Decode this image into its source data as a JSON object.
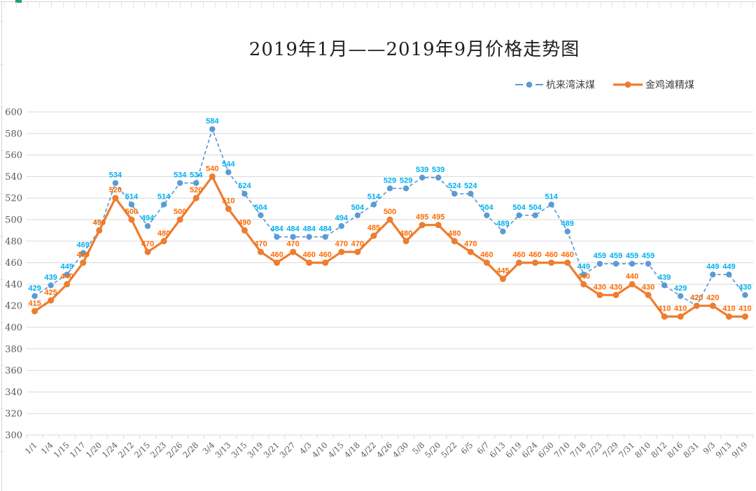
{
  "sheet": {
    "cell_marker_color": "#21A366",
    "gridline_color": "#d6d6d6"
  },
  "chart_data": {
    "type": "line",
    "title": "2019年1月——2019年9月价格走势图",
    "categories": [
      "1/1",
      "1/4",
      "1/15",
      "1/17",
      "1/20",
      "1/24",
      "2/12",
      "2/15",
      "2/23",
      "2/26",
      "2/28",
      "3/4",
      "3/13",
      "3/15",
      "3/19",
      "3/21",
      "3/27",
      "4/3",
      "4/10",
      "4/15",
      "4/18",
      "4/22",
      "4/26",
      "4/30",
      "5/8",
      "5/20",
      "5/22",
      "6/5",
      "6/7",
      "6/13",
      "6/19",
      "6/24",
      "6/30",
      "7/10",
      "7/18",
      "7/23",
      "7/29",
      "7/31",
      "8/10",
      "8/12",
      "8/16",
      "8/31",
      "9/3",
      "9/13",
      "9/19"
    ],
    "series": [
      {
        "name": "杭来湾沫煤",
        "line_style": "dashed",
        "color": "#5B9BD5",
        "label_color": "#00B0F0",
        "values": [
          429,
          439,
          449,
          469,
          490,
          534,
          514,
          494,
          514,
          534,
          534,
          584,
          544,
          524,
          504,
          484,
          484,
          484,
          484,
          494,
          504,
          514,
          529,
          529,
          539,
          539,
          524,
          524,
          504,
          489,
          504,
          504,
          514,
          489,
          449,
          459,
          459,
          459,
          459,
          439,
          429,
          420,
          449,
          449,
          430
        ]
      },
      {
        "name": "金鸡滩精煤",
        "line_style": "solid",
        "color": "#ED7D31",
        "label_color": "#FF6A00",
        "values": [
          415,
          425,
          440,
          460,
          490,
          520,
          500,
          470,
          480,
          500,
          520,
          540,
          510,
          490,
          470,
          460,
          470,
          460,
          460,
          470,
          470,
          485,
          500,
          480,
          495,
          495,
          480,
          470,
          460,
          445,
          460,
          460,
          460,
          460,
          440,
          430,
          430,
          440,
          430,
          410,
          410,
          420,
          420,
          410,
          410
        ]
      }
    ],
    "ylim": [
      300,
      600
    ],
    "ytick_step": 20,
    "xlabel": "",
    "ylabel": "",
    "grid": true,
    "grid_color": "#D9D9D9",
    "axis_text_color": "#595959",
    "legend_position": "top-right",
    "data_labels": true
  }
}
